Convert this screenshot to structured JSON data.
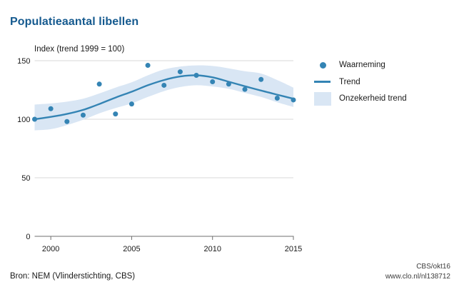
{
  "page": {
    "title": "Populatieaantal libellen",
    "source": "Bron: NEM (Vlinderstichting, CBS)",
    "credit": "CBS/okt16",
    "link": "www.clo.nl/nl138712"
  },
  "legend": {
    "items": [
      {
        "label": "Waarneming",
        "swatch": "dot-icon"
      },
      {
        "label": "Trend",
        "swatch": "line-icon"
      },
      {
        "label": "Onzekerheid trend",
        "swatch": "band-icon"
      }
    ]
  },
  "colors": {
    "accent": "#3484b4",
    "band": "#d9e6f4",
    "title": "#155a8f",
    "grid": "#d9d9d9",
    "axis": "#6f6f6f",
    "text": "#1a1a1a"
  },
  "chart_data": {
    "type": "line",
    "title": "Index (trend 1999 = 100)",
    "xlabel": "",
    "ylabel": "Index",
    "x": [
      1999,
      2000,
      2001,
      2002,
      2003,
      2004,
      2005,
      2006,
      2007,
      2008,
      2009,
      2010,
      2011,
      2012,
      2013,
      2014,
      2015
    ],
    "x_ticks": [
      2000,
      2005,
      2010,
      2015
    ],
    "y_ticks": [
      0,
      50,
      100,
      150
    ],
    "xlim": [
      1999,
      2015
    ],
    "ylim": [
      0,
      150
    ],
    "grid": true,
    "legend_position": "right",
    "series": [
      {
        "name": "Waarneming",
        "type": "scatter",
        "values": [
          100,
          109,
          98,
          103.5,
          130,
          104.5,
          113,
          146,
          129,
          140.5,
          137.5,
          132,
          130,
          125.5,
          134,
          118,
          116.5
        ]
      },
      {
        "name": "Trend",
        "type": "line",
        "values": [
          100,
          102,
          104.5,
          108,
          113,
          118.5,
          123.5,
          129,
          133.5,
          136.5,
          137.5,
          135.8,
          132,
          128.2,
          124.5,
          121,
          117.5
        ]
      },
      {
        "name": "Onzekerheid trend",
        "type": "band",
        "lower": [
          90.5,
          91.5,
          95,
          99.5,
          105,
          109.5,
          113.5,
          119,
          124,
          127.5,
          129,
          128,
          126,
          122.5,
          119,
          114.5,
          110.5
        ],
        "upper": [
          112.5,
          113.5,
          115,
          117.5,
          122,
          127,
          131.5,
          137.5,
          142.5,
          145,
          146,
          145.5,
          143.5,
          141,
          139,
          133.5,
          127
        ]
      }
    ]
  }
}
